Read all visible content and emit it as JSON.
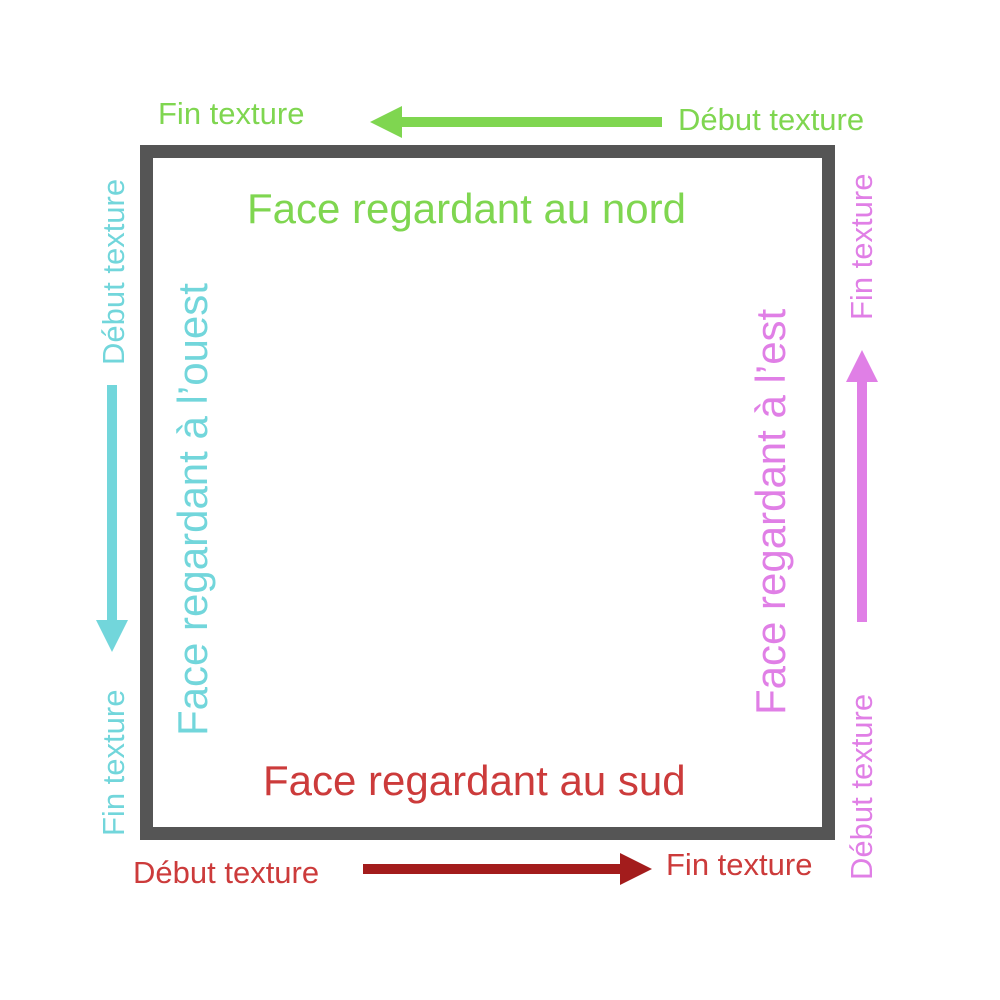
{
  "colors": {
    "north": "#7fd650",
    "south_text": "#cc3b3b",
    "south_arrow": "#a31c1c",
    "west": "#72d6db",
    "east": "#e07fe6",
    "wall": "#555555"
  },
  "north": {
    "face_label": "Face regardant au nord",
    "start_label": "Début texture",
    "end_label": "Fin texture"
  },
  "south": {
    "face_label": "Face regardant au sud",
    "start_label": "Début texture",
    "end_label": "Fin texture"
  },
  "west": {
    "face_label": "Face regardant à l’ouest",
    "start_label": "Début texture",
    "end_label": "Fin texture"
  },
  "east": {
    "face_label": "Face regardant à l’est",
    "start_label": "Début texture",
    "end_label": "Fin texture"
  }
}
